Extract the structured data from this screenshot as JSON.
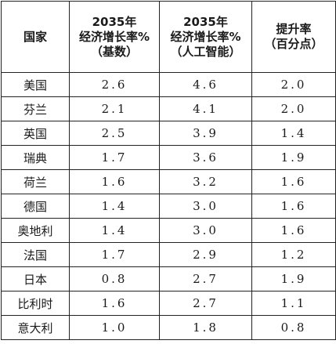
{
  "table": {
    "headers": [
      [
        "国家"
      ],
      [
        "2035年",
        "经济增长率%",
        "（基数）"
      ],
      [
        "2035年",
        "经济增长率%",
        "（人工智能）"
      ],
      [
        "提升率",
        "（百分点）"
      ]
    ],
    "rows": [
      [
        "美国",
        "2.6",
        "4.6",
        "2.0"
      ],
      [
        "芬兰",
        "2.1",
        "4.1",
        "2.0"
      ],
      [
        "英国",
        "2.5",
        "3.9",
        "1.4"
      ],
      [
        "瑞典",
        "1.7",
        "3.6",
        "1.9"
      ],
      [
        "荷兰",
        "1.6",
        "3.2",
        "1.6"
      ],
      [
        "德国",
        "1.4",
        "3.0",
        "1.6"
      ],
      [
        "奥地利",
        "1.4",
        "3.0",
        "1.6"
      ],
      [
        "法国",
        "1.7",
        "2.9",
        "1.2"
      ],
      [
        "日本",
        "0.8",
        "2.7",
        "1.9"
      ],
      [
        "比利时",
        "1.6",
        "2.7",
        "1.1"
      ],
      [
        "意大利",
        "1.0",
        "1.8",
        "0.8"
      ]
    ]
  }
}
